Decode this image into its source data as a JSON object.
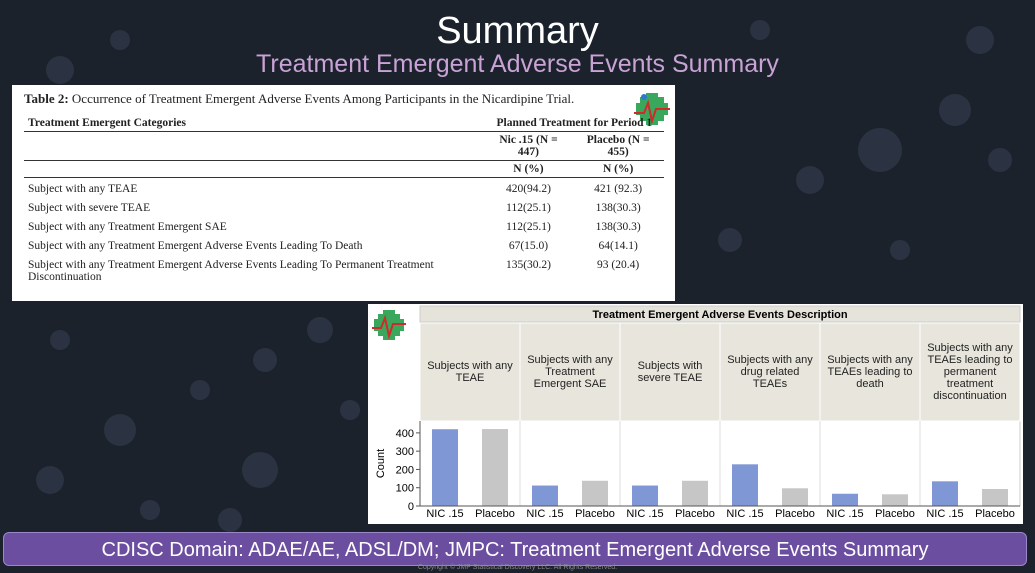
{
  "header": {
    "title": "Summary",
    "subtitle": "Treatment Emergent Adverse Events Summary"
  },
  "table": {
    "label": "Table 2:",
    "caption": "Occurrence of Treatment Emergent Adverse Events Among Participants in the Nicardipine Trial.",
    "row_header": "Treatment Emergent Categories",
    "group_header": "Planned Treatment for Period 1",
    "columns": [
      "Nic .15 (N = 447)",
      "Placebo (N = 455)"
    ],
    "units": [
      "N (%)",
      "N (%)"
    ],
    "rows": [
      [
        "Subject with any TEAE",
        "420(94.2)",
        "421 (92.3)"
      ],
      [
        "Subject with severe TEAE",
        "112(25.1)",
        "138(30.3)"
      ],
      [
        "Subject with any Treatment Emergent SAE",
        "112(25.1)",
        "138(30.3)"
      ],
      [
        "Subject with any Treatment Emergent Adverse Events Leading To Death",
        "67(15.0)",
        "64(14.1)"
      ],
      [
        "Subject with any Treatment Emergent Adverse Events Leading To Permanent Treatment Discontinuation",
        "135(30.2)",
        "93 (20.4)"
      ]
    ]
  },
  "chart_data": {
    "type": "bar",
    "title": "Treatment Emergent Adverse Events Description",
    "y_label": "Count",
    "categories": [
      "Subjects with any TEAE",
      "Subjects with any Treatment Emergent SAE",
      "Subjects with severe TEAE",
      "Subjects with any drug related TEAEs",
      "Subjects with any TEAEs leading to death",
      "Subjects with any TEAEs leading to permanent treatment discontinuation"
    ],
    "series": [
      {
        "name": "NIC .15",
        "color": "#7f97d4",
        "values": [
          420,
          112,
          112,
          228,
          67,
          135
        ]
      },
      {
        "name": "Placebo",
        "color": "#c6c6c6",
        "values": [
          421,
          138,
          138,
          97,
          64,
          93
        ]
      }
    ],
    "ylim": [
      0,
      465
    ],
    "yticks": [
      0,
      100,
      200,
      300,
      400
    ]
  },
  "footer": {
    "banner": "CDISC Domain: ADAE/AE, ADSL/DM; JMPC: Treatment Emergent Adverse Events Summary",
    "copyright": "Copyright © JMP Statistical Discovery LLC. All Rights Reserved."
  }
}
